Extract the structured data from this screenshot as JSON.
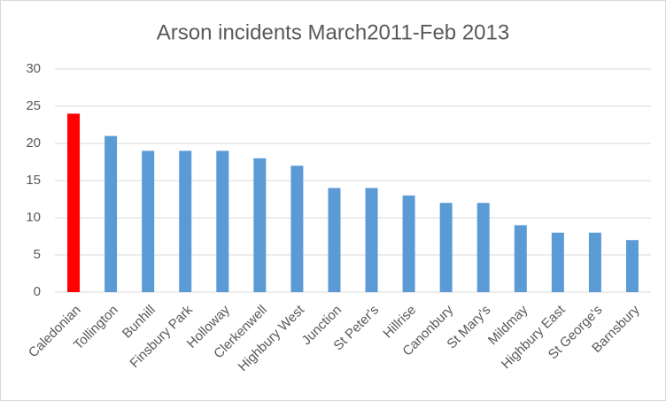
{
  "chart_data": {
    "type": "bar",
    "title": "Arson incidents March2011-Feb 2013",
    "categories": [
      "Caledonian",
      "Tollington",
      "Bunhill",
      "Finsbury Park",
      "Holloway",
      "Clerkenwell",
      "Highbury West",
      "Junction",
      "St Peter's",
      "Hillrise",
      "Canonbury",
      "St Mary's",
      "Mildmay",
      "Highbury East",
      "St George's",
      "Barnsbury"
    ],
    "values": [
      24,
      21,
      19,
      19,
      19,
      18,
      17,
      14,
      14,
      13,
      12,
      12,
      9,
      8,
      8,
      7
    ],
    "colors": [
      "#ff0000",
      "#5b9bd5",
      "#5b9bd5",
      "#5b9bd5",
      "#5b9bd5",
      "#5b9bd5",
      "#5b9bd5",
      "#5b9bd5",
      "#5b9bd5",
      "#5b9bd5",
      "#5b9bd5",
      "#5b9bd5",
      "#5b9bd5",
      "#5b9bd5",
      "#5b9bd5",
      "#5b9bd5"
    ],
    "ylim": [
      0,
      30
    ],
    "yticks": [
      0,
      5,
      10,
      15,
      20,
      25,
      30
    ],
    "grid": true
  }
}
